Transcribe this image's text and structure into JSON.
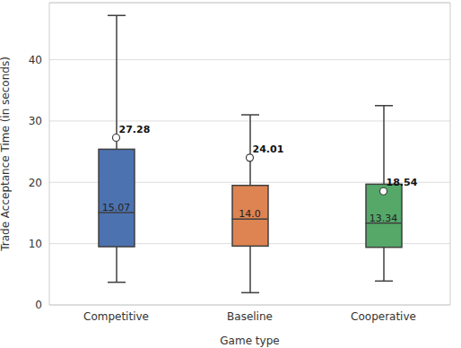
{
  "chart_data": {
    "type": "box",
    "x_label": "Game type",
    "y_label": "Trade Acceptance Time (in seconds)",
    "categories": [
      "Competitive",
      "Baseline",
      "Cooperative"
    ],
    "colors": [
      "#4c72b0",
      "#dd8452",
      "#55a868"
    ],
    "whisker_low": [
      3.7,
      2.0,
      3.9
    ],
    "q1": [
      9.5,
      9.6,
      9.4
    ],
    "median": [
      15.07,
      14.0,
      13.34
    ],
    "median_labels": [
      "15.07",
      "14.0",
      "13.34"
    ],
    "q3": [
      25.4,
      19.5,
      19.7
    ],
    "whisker_high": [
      47.2,
      31.0,
      32.5
    ],
    "mean": [
      27.28,
      24.01,
      18.54
    ],
    "ylim": [
      0,
      49.3
    ],
    "yticks": [
      0,
      10,
      20,
      30,
      40
    ],
    "grid": true,
    "data_labels": true
  }
}
